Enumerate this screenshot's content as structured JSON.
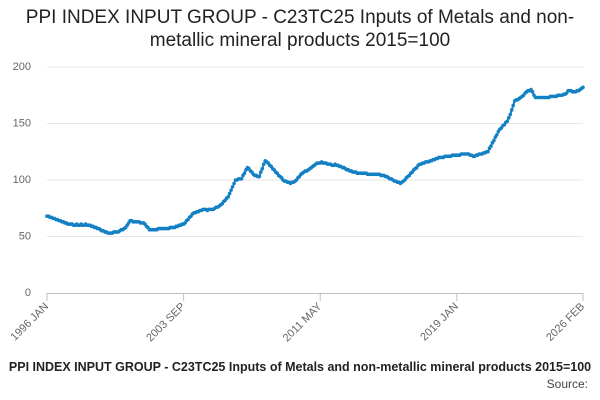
{
  "chart_data": {
    "type": "line",
    "title": "PPI INDEX INPUT GROUP - C23TC25 Inputs of Metals and non-metallic mineral products 2015=100",
    "footer": "PPI INDEX INPUT GROUP - C23TC25 Inputs of Metals and non-metallic mineral products 2015=100",
    "source": "Source:",
    "color": "#1380c4",
    "grid": true,
    "ylim": [
      0,
      200
    ],
    "yticks": [
      0,
      50,
      100,
      150,
      200
    ],
    "categories": [
      "1996 JAN",
      null,
      null,
      null,
      null,
      null,
      null,
      null,
      null,
      null,
      null,
      null,
      null,
      null,
      null,
      null,
      null,
      null,
      null,
      null,
      null,
      null,
      null,
      null,
      null,
      null,
      null,
      null,
      null,
      null,
      null,
      null,
      null,
      null,
      null,
      null,
      null,
      null,
      null,
      null,
      null,
      null,
      null,
      null,
      null,
      null,
      null,
      null,
      null,
      null,
      null,
      null,
      null,
      null,
      null,
      null,
      null,
      null,
      null,
      null,
      null,
      null,
      null,
      null,
      null,
      null,
      null,
      null,
      null,
      null,
      null,
      null,
      null,
      null,
      null,
      null,
      null,
      null,
      null,
      null,
      null,
      null,
      null,
      null,
      null,
      null,
      null,
      null,
      null,
      null,
      null,
      null,
      "2003 SEP",
      null,
      null,
      null,
      null,
      null,
      null,
      null,
      null,
      null,
      null,
      null,
      null,
      null,
      null,
      null,
      null,
      null,
      null,
      null,
      null,
      null,
      null,
      null,
      null,
      null,
      null,
      null,
      null,
      null,
      null,
      null,
      null,
      null,
      null,
      null,
      null,
      null,
      null,
      null,
      null,
      null,
      null,
      null,
      null,
      null,
      null,
      null,
      null,
      null,
      null,
      null,
      null,
      null,
      null,
      null,
      null,
      null,
      null,
      null,
      null,
      null,
      null,
      null,
      null,
      null,
      null,
      null,
      null,
      null,
      null,
      null,
      null,
      null,
      null,
      null,
      null,
      null,
      null,
      null,
      null,
      null,
      null,
      null,
      null,
      null,
      null,
      null,
      null,
      null,
      null,
      null,
      "2011 MAY",
      null,
      null,
      null,
      null,
      null,
      null,
      null,
      null,
      null,
      null,
      null,
      null,
      null,
      null,
      null,
      null,
      null,
      null,
      null,
      null,
      null,
      null,
      null,
      null,
      null,
      null,
      null,
      null,
      null,
      null,
      null,
      null,
      null,
      null,
      null,
      null,
      null,
      null,
      null,
      null,
      null,
      null,
      null,
      null,
      null,
      null,
      null,
      null,
      null,
      null,
      null,
      null,
      null,
      null,
      null,
      null,
      null,
      null,
      null,
      null,
      null,
      null,
      null,
      null,
      null,
      null,
      null,
      null,
      null,
      null,
      null,
      null,
      null,
      null,
      null,
      null,
      null,
      null,
      null,
      null,
      null,
      null,
      null,
      null,
      null,
      null,
      null,
      null,
      null,
      null,
      null,
      "2019 JAN",
      null,
      null,
      null,
      null,
      null,
      null,
      null,
      null,
      null,
      null,
      null,
      null,
      null,
      null,
      null,
      null,
      null,
      null,
      null,
      null,
      null,
      null,
      null,
      null,
      null,
      null,
      null,
      null,
      null,
      null,
      null,
      null,
      null,
      null,
      null,
      null,
      null,
      null,
      null,
      null,
      null,
      null,
      null,
      null,
      null,
      null,
      null,
      null,
      null,
      null,
      null,
      null,
      null,
      null,
      null,
      null,
      null,
      null,
      null,
      null,
      null,
      null,
      null,
      null,
      null,
      null,
      null,
      null,
      null,
      null,
      null,
      null,
      null,
      null,
      null,
      null,
      null,
      null,
      null,
      null,
      null,
      null,
      null,
      null,
      "2026 FEB"
    ],
    "values": [
      68,
      68,
      67,
      67,
      66,
      66,
      65,
      65,
      64,
      64,
      63,
      63,
      62,
      62,
      61,
      61,
      61,
      61,
      60,
      60,
      61,
      60,
      60,
      61,
      60,
      60,
      61,
      60,
      60,
      60,
      59,
      59,
      58,
      58,
      57,
      57,
      56,
      55,
      55,
      54,
      54,
      53,
      53,
      53,
      53,
      54,
      54,
      54,
      54,
      55,
      56,
      56,
      57,
      58,
      60,
      62,
      64,
      64,
      63,
      63,
      63,
      63,
      63,
      62,
      62,
      62,
      61,
      59,
      58,
      56,
      56,
      56,
      56,
      56,
      56,
      57,
      57,
      57,
      57,
      57,
      57,
      57,
      57,
      58,
      58,
      58,
      58,
      59,
      59,
      60,
      60,
      61,
      61,
      62,
      64,
      65,
      67,
      68,
      70,
      71,
      71,
      72,
      72,
      73,
      73,
      74,
      74,
      74,
      73,
      74,
      74,
      74,
      74,
      75,
      76,
      76,
      77,
      78,
      79,
      81,
      82,
      84,
      85,
      88,
      91,
      94,
      97,
      100,
      100,
      101,
      101,
      101,
      104,
      106,
      109,
      111,
      110,
      108,
      107,
      105,
      104,
      104,
      103,
      103,
      107,
      110,
      114,
      117,
      116,
      115,
      113,
      112,
      110,
      109,
      107,
      106,
      104,
      103,
      102,
      100,
      99,
      99,
      98,
      98,
      97,
      98,
      98,
      99,
      100,
      102,
      103,
      105,
      106,
      107,
      108,
      108,
      109,
      110,
      111,
      112,
      113,
      114,
      115,
      115,
      115,
      116,
      115,
      115,
      115,
      114,
      114,
      114,
      113,
      113,
      114,
      113,
      113,
      112,
      112,
      111,
      111,
      110,
      109,
      109,
      108,
      108,
      107,
      107,
      107,
      106,
      106,
      106,
      106,
      106,
      106,
      106,
      105,
      105,
      105,
      105,
      105,
      105,
      105,
      105,
      105,
      104,
      104,
      104,
      103,
      103,
      102,
      101,
      101,
      100,
      99,
      99,
      98,
      98,
      97,
      98,
      99,
      100,
      102,
      103,
      104,
      106,
      107,
      109,
      110,
      111,
      113,
      114,
      114,
      115,
      115,
      116,
      116,
      116,
      117,
      117,
      118,
      118,
      119,
      119,
      120,
      120,
      120,
      120,
      121,
      121,
      121,
      121,
      121,
      122,
      122,
      122,
      122,
      122,
      122,
      123,
      123,
      123,
      123,
      123,
      123,
      122,
      122,
      121,
      121,
      122,
      122,
      123,
      123,
      123,
      124,
      124,
      125,
      125,
      128,
      130,
      133,
      135,
      138,
      140,
      143,
      145,
      146,
      148,
      149,
      151,
      152,
      155,
      158,
      162,
      166,
      170,
      171,
      171,
      172,
      173,
      174,
      175,
      177,
      178,
      179,
      179,
      180,
      178,
      175,
      173,
      173,
      173,
      173,
      173,
      173,
      173,
      173,
      173,
      173,
      174,
      174,
      174,
      174,
      174,
      175,
      175,
      175,
      175,
      176,
      176,
      177,
      179,
      179,
      179,
      178,
      178,
      178,
      179,
      179,
      180,
      181,
      182
    ]
  }
}
